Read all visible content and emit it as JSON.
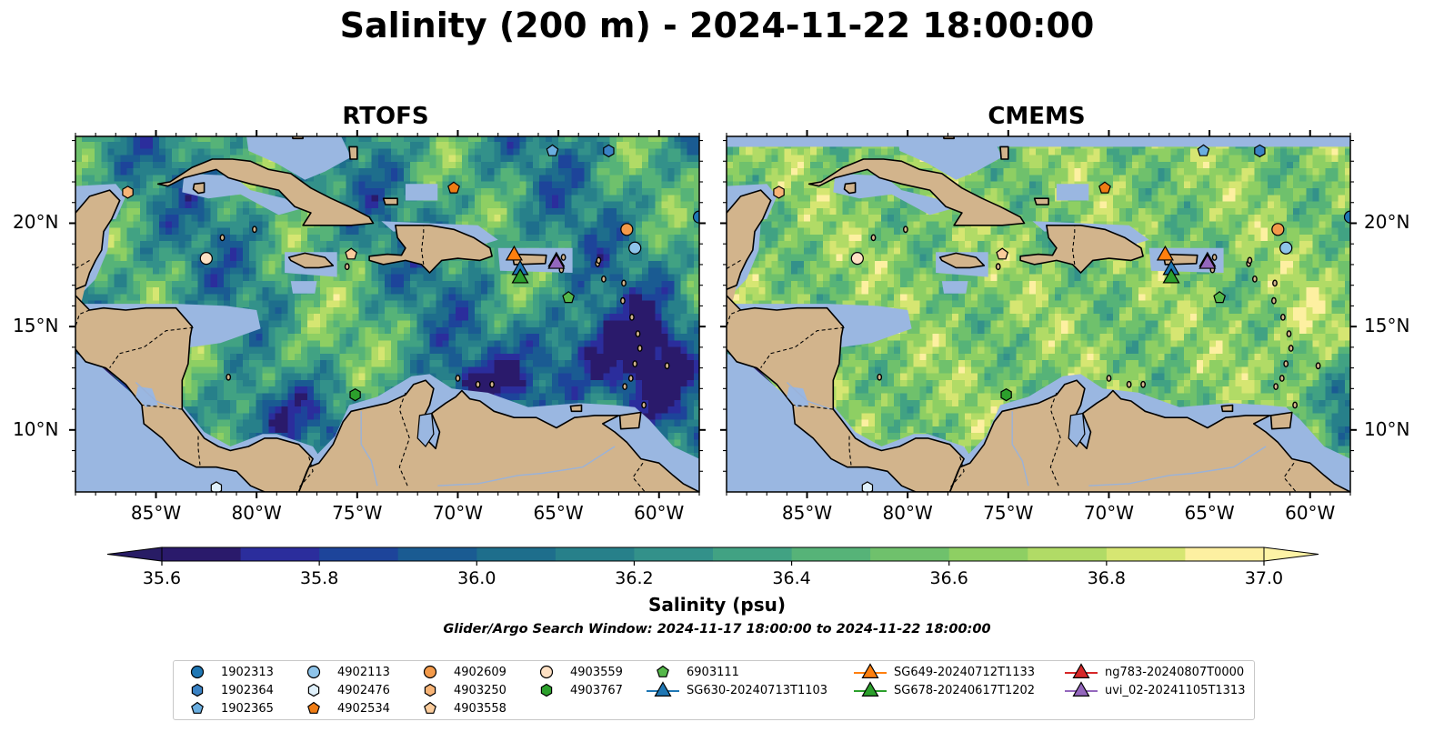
{
  "title": "Salinity (200 m) - 2024-11-22 18:00:00",
  "panels": [
    {
      "title": "RTOFS"
    },
    {
      "title": "CMEMS"
    }
  ],
  "axes": {
    "lon_ticks": [
      "85°W",
      "80°W",
      "75°W",
      "70°W",
      "65°W",
      "60°W"
    ],
    "lat_ticks": [
      "20°N",
      "15°N",
      "10°N"
    ]
  },
  "colorbar": {
    "label": "Salinity (psu)",
    "ticks": [
      "35.6",
      "35.8",
      "36.0",
      "36.2",
      "36.4",
      "36.6",
      "36.8",
      "37.0"
    ],
    "range": [
      35.6,
      37.0
    ],
    "levels": [
      "#2a1a6b",
      "#2b2d9c",
      "#1d449a",
      "#1a5b92",
      "#1e6e8c",
      "#27808a",
      "#33918a",
      "#41a283",
      "#56b378",
      "#6fc16c",
      "#8ecf63",
      "#b1db66",
      "#d6e672",
      "#fdf0a1"
    ],
    "under_color": "#281c65",
    "over_color": "#fdf3a6"
  },
  "colors": {
    "land": "#d2b48c",
    "shelf": "#9ab7e1",
    "coast": "#000000"
  },
  "search_window": "Glider/Argo Search Window: 2024-11-17 18:00:00 to 2024-11-22 18:00:00",
  "legend": [
    {
      "label": "1902313",
      "marker": "circle",
      "color": "#1f77b4"
    },
    {
      "label": "1902364",
      "marker": "hexagon",
      "color": "#3a82c4"
    },
    {
      "label": "1902365",
      "marker": "pentagon",
      "color": "#6aaee0"
    },
    {
      "label": "4902113",
      "marker": "circle",
      "color": "#8ec4ea"
    },
    {
      "label": "4902476",
      "marker": "hexagon",
      "color": "#dff0fb"
    },
    {
      "label": "4902534",
      "marker": "pentagon",
      "color": "#ef7c14"
    },
    {
      "label": "4902609",
      "marker": "circle",
      "color": "#f39a4a"
    },
    {
      "label": "4903250",
      "marker": "hexagon",
      "color": "#f7b477"
    },
    {
      "label": "4903558",
      "marker": "pentagon",
      "color": "#fbcc9c"
    },
    {
      "label": "4903559",
      "marker": "circle",
      "color": "#fde0c3"
    },
    {
      "label": "4903767",
      "marker": "hexagon",
      "color": "#2ca02c"
    },
    {
      "label": "6903111",
      "marker": "pentagon",
      "color": "#55b84a"
    },
    {
      "label": "SG630-20240713T1103",
      "marker": "triangle-line",
      "color": "#1f77b4"
    },
    {
      "label": "SG649-20240712T1133",
      "marker": "triangle-line",
      "color": "#ff7f0e"
    },
    {
      "label": "SG678-20240617T1202",
      "marker": "triangle-line",
      "color": "#2ca02c"
    },
    {
      "label": "ng783-20240807T0000",
      "marker": "triangle-line",
      "color": "#d62728"
    },
    {
      "label": "uvi_02-20241105T1313",
      "marker": "triangle-line",
      "color": "#9467bd"
    }
  ],
  "platforms": [
    {
      "id": "1902313",
      "lon": -58.0,
      "lat": 20.3
    },
    {
      "id": "1902364",
      "lon": -62.5,
      "lat": 23.5
    },
    {
      "id": "1902365",
      "lon": -65.3,
      "lat": 23.5
    },
    {
      "id": "4902113",
      "lon": -61.2,
      "lat": 18.8
    },
    {
      "id": "4902476",
      "lon": -82.0,
      "lat": 7.2
    },
    {
      "id": "4902534",
      "lon": -70.2,
      "lat": 21.7
    },
    {
      "id": "4902609",
      "lon": -61.6,
      "lat": 19.7
    },
    {
      "id": "4903250",
      "lon": -86.4,
      "lat": 21.5
    },
    {
      "id": "4903558",
      "lon": -75.3,
      "lat": 18.5
    },
    {
      "id": "4903559",
      "lon": -82.5,
      "lat": 18.3
    },
    {
      "id": "4903767",
      "lon": -75.1,
      "lat": 11.7
    },
    {
      "id": "6903111",
      "lon": -64.5,
      "lat": 16.4
    },
    {
      "id": "SG630-20240713T1103",
      "lon": -66.9,
      "lat": 17.8
    },
    {
      "id": "SG649-20240712T1133",
      "lon": -67.2,
      "lat": 18.5
    },
    {
      "id": "SG678-20240617T1202",
      "lon": -66.9,
      "lat": 17.4
    },
    {
      "id": "ng783-20240807T0000",
      "lon": -65.1,
      "lat": 18.2
    },
    {
      "id": "uvi_02-20241105T1313",
      "lon": -65.1,
      "lat": 18.1
    }
  ]
}
